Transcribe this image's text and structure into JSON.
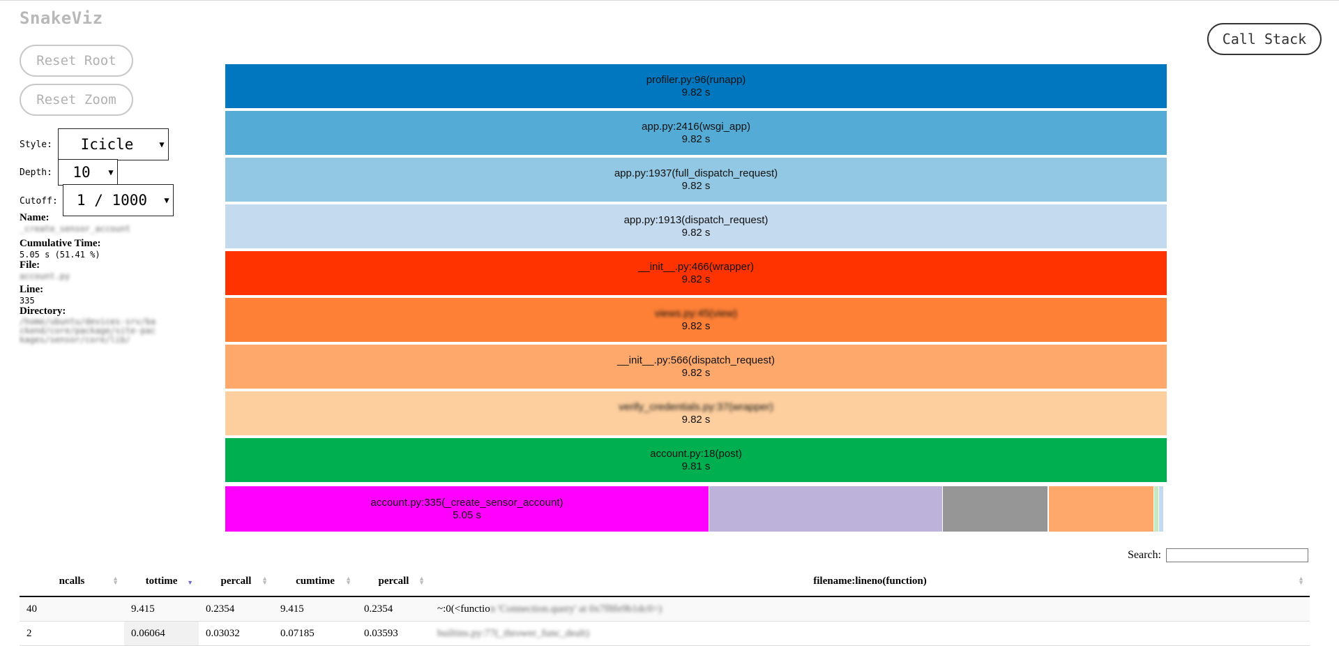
{
  "app_title": "SnakeViz",
  "buttons": {
    "reset_root": "Reset Root",
    "reset_zoom": "Reset Zoom",
    "call_stack": "Call Stack"
  },
  "controls": {
    "style_label": "Style:",
    "style_value": "Icicle",
    "depth_label": "Depth:",
    "depth_value": "10",
    "cutoff_label": "Cutoff:",
    "cutoff_value": "1 / 1000"
  },
  "info": {
    "name_label": "Name:",
    "name_value": "_create_sensor_account",
    "cumtime_label": "Cumulative Time:",
    "cumtime_value": "5.05 s (51.41 %)",
    "file_label": "File:",
    "file_value": "account.py",
    "line_label": "Line:",
    "line_value": "335",
    "dir_label": "Directory:",
    "dir_value": "/home/ubuntu/devices-srv/backend/core/package/site-packages/sensor/core/lib/"
  },
  "icicle": {
    "rows": [
      {
        "label": "profiler.py:96(runapp)",
        "time": "9.82 s",
        "color": "#0077be",
        "blurred": false
      },
      {
        "label": "app.py:2416(wsgi_app)",
        "time": "9.82 s",
        "color": "#54acd6",
        "blurred": false
      },
      {
        "label": "app.py:1937(full_dispatch_request)",
        "time": "9.82 s",
        "color": "#92c8e3",
        "blurred": false
      },
      {
        "label": "app.py:1913(dispatch_request)",
        "time": "9.82 s",
        "color": "#c3daef",
        "blurred": false
      },
      {
        "label": "__init__.py:466(wrapper)",
        "time": "9.82 s",
        "color": "#ff3300",
        "blurred": false
      },
      {
        "label": "views.py:45(view)",
        "time": "9.82 s",
        "color": "#fe8037",
        "blurred": true
      },
      {
        "label": "__init__.py:566(dispatch_request)",
        "time": "9.82 s",
        "color": "#fea96b",
        "blurred": false
      },
      {
        "label": "verify_credentials.py:37(wrapper)",
        "time": "9.82 s",
        "color": "#fdcf9f",
        "blurred": true
      },
      {
        "label": "account.py:18(post)",
        "time": "9.81 s",
        "color": "#00b050",
        "blurred": false
      }
    ],
    "bottom_main": {
      "label": "account.py:335(_create_sensor_account)",
      "time": "5.05 s",
      "color": "#ff00ff",
      "fraction": 0.5141
    },
    "bottom_others": [
      {
        "color": "#bdb3da",
        "fraction": 0.2483
      },
      {
        "color": "#969696",
        "fraction": 0.1122
      },
      {
        "color": "#fea96b",
        "fraction": 0.112
      },
      {
        "color": "#c7e9c0",
        "fraction": 0.005
      },
      {
        "color": "#c3daef",
        "fraction": 0.005
      }
    ]
  },
  "search": {
    "label": "Search:",
    "value": ""
  },
  "table": {
    "headers": [
      "ncalls",
      "tottime",
      "percall",
      "cumtime",
      "percall",
      "filename:lineno(function)"
    ],
    "sorted_column": "tottime",
    "rows": [
      {
        "ncalls": "40",
        "tottime": "9.415",
        "percall": "0.2354",
        "cumtime": "9.415",
        "percall2": "0.2354",
        "func_visible": "~:0(<functio",
        "func_blurred": "n 'Connection.query' at 0x7f8fe9b1dc0>)"
      },
      {
        "ncalls": "2",
        "tottime": "0.06064",
        "percall": "0.03032",
        "cumtime": "0.07185",
        "percall2": "0.03593",
        "func_visible": "",
        "func_blurred": "builtins.py:77(_thrower_func_dealt)"
      }
    ]
  }
}
